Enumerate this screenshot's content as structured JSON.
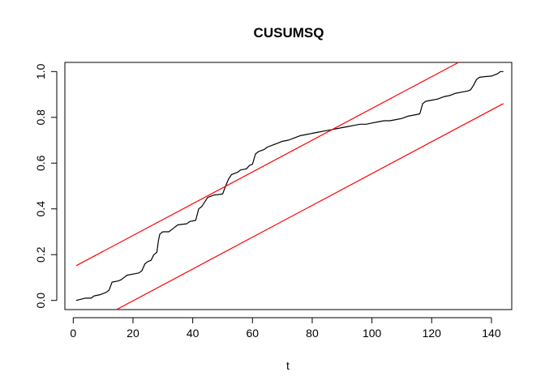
{
  "chart_data": {
    "type": "line",
    "title": "CUSUMSQ",
    "xlabel": "t",
    "ylabel": "",
    "xlim": [
      -2.8,
      146.8
    ],
    "ylim": [
      -0.04,
      1.04
    ],
    "x_ticks": [
      0,
      20,
      40,
      60,
      80,
      100,
      120,
      140
    ],
    "y_ticks": [
      0.0,
      0.2,
      0.4,
      0.6,
      0.8,
      1.0
    ],
    "x_tick_labels": [
      "0",
      "20",
      "40",
      "60",
      "80",
      "100",
      "120",
      "140"
    ],
    "y_tick_labels": [
      "0.0",
      "0.2",
      "0.4",
      "0.6",
      "0.8",
      "1.0"
    ],
    "grid": false,
    "legend": "none",
    "series": [
      {
        "color": "#000000",
        "points": [
          [
            1,
            0.0
          ],
          [
            4,
            0.01
          ],
          [
            6,
            0.01
          ],
          [
            7,
            0.02
          ],
          [
            9,
            0.025
          ],
          [
            11,
            0.035
          ],
          [
            12,
            0.045
          ],
          [
            13,
            0.08
          ],
          [
            15,
            0.085
          ],
          [
            16,
            0.09
          ],
          [
            18,
            0.11
          ],
          [
            20,
            0.115
          ],
          [
            22,
            0.12
          ],
          [
            23,
            0.13
          ],
          [
            24,
            0.16
          ],
          [
            25,
            0.17
          ],
          [
            26,
            0.175
          ],
          [
            27,
            0.2
          ],
          [
            28,
            0.21
          ],
          [
            28.5,
            0.26
          ],
          [
            29,
            0.29
          ],
          [
            30,
            0.3
          ],
          [
            32,
            0.3
          ],
          [
            33,
            0.31
          ],
          [
            34,
            0.32
          ],
          [
            35,
            0.33
          ],
          [
            38,
            0.335
          ],
          [
            39,
            0.345
          ],
          [
            41,
            0.35
          ],
          [
            42,
            0.4
          ],
          [
            43,
            0.41
          ],
          [
            44,
            0.43
          ],
          [
            45,
            0.45
          ],
          [
            47,
            0.46
          ],
          [
            50,
            0.465
          ],
          [
            51,
            0.5
          ],
          [
            52,
            0.53
          ],
          [
            53,
            0.55
          ],
          [
            55,
            0.56
          ],
          [
            56,
            0.57
          ],
          [
            58,
            0.575
          ],
          [
            59,
            0.59
          ],
          [
            60,
            0.595
          ],
          [
            61,
            0.64
          ],
          [
            62,
            0.65
          ],
          [
            64,
            0.66
          ],
          [
            65,
            0.67
          ],
          [
            67,
            0.68
          ],
          [
            69,
            0.69
          ],
          [
            70,
            0.695
          ],
          [
            72,
            0.7
          ],
          [
            74,
            0.71
          ],
          [
            76,
            0.72
          ],
          [
            78,
            0.725
          ],
          [
            80,
            0.73
          ],
          [
            82,
            0.735
          ],
          [
            84,
            0.74
          ],
          [
            86,
            0.745
          ],
          [
            88,
            0.75
          ],
          [
            90,
            0.755
          ],
          [
            92,
            0.76
          ],
          [
            94,
            0.765
          ],
          [
            96,
            0.77
          ],
          [
            98,
            0.77
          ],
          [
            100,
            0.775
          ],
          [
            102,
            0.78
          ],
          [
            104,
            0.785
          ],
          [
            106,
            0.785
          ],
          [
            108,
            0.79
          ],
          [
            110,
            0.795
          ],
          [
            112,
            0.805
          ],
          [
            114,
            0.81
          ],
          [
            116,
            0.815
          ],
          [
            117,
            0.86
          ],
          [
            118,
            0.87
          ],
          [
            120,
            0.875
          ],
          [
            122,
            0.88
          ],
          [
            124,
            0.89
          ],
          [
            126,
            0.895
          ],
          [
            128,
            0.905
          ],
          [
            130,
            0.91
          ],
          [
            132,
            0.915
          ],
          [
            133,
            0.92
          ],
          [
            134,
            0.94
          ],
          [
            135,
            0.965
          ],
          [
            136,
            0.975
          ],
          [
            138,
            0.978
          ],
          [
            140,
            0.98
          ],
          [
            142,
            0.99
          ],
          [
            143,
            1.0
          ],
          [
            144,
            1.0
          ]
        ]
      },
      {
        "color": "#ff0000",
        "points": [
          [
            1,
            0.152
          ],
          [
            129,
            1.04
          ]
        ]
      },
      {
        "color": "#ff0000",
        "points": [
          [
            14.5,
            -0.04
          ],
          [
            144,
            0.86
          ]
        ]
      }
    ]
  }
}
